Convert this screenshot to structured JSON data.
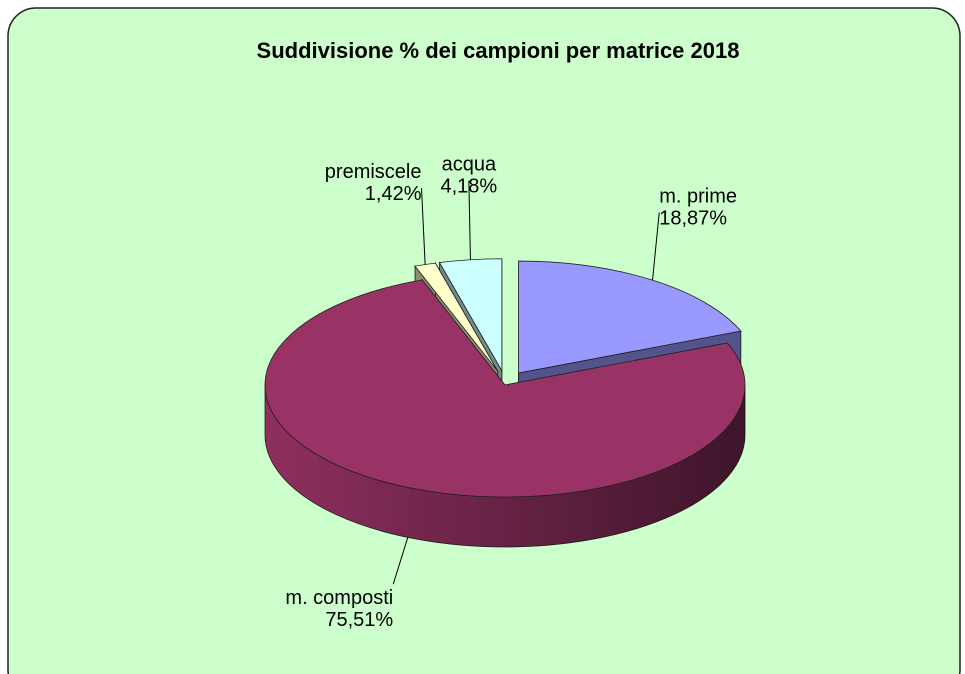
{
  "chart_data": {
    "type": "pie",
    "title": "Suddivisione % dei campioni per matrice 2018",
    "categories": [
      "m. prime",
      "m. composti",
      "premiscele",
      "acqua"
    ],
    "values": [
      18.87,
      75.51,
      1.42,
      4.18
    ],
    "value_labels": [
      "18,87%",
      "75,51%",
      "1,42%",
      "4,18%"
    ],
    "colors": [
      "#9999ff",
      "#993366",
      "#ffffcc",
      "#ccffff"
    ]
  }
}
